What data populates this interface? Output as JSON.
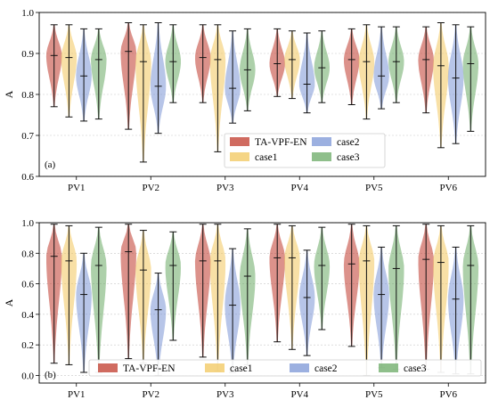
{
  "chart_data": [
    {
      "type": "violin",
      "panel_label": "(a)",
      "ylabel": "A",
      "ylim": [
        0.6,
        1.0
      ],
      "yticks": [
        0.6,
        0.7,
        0.8,
        0.9,
        1.0
      ],
      "ytick_labels": [
        "0.6",
        "0.7",
        "0.8",
        "0.9",
        "1.0"
      ],
      "grid": "horizontal dashed",
      "legend_position": "lower-center",
      "categories": [
        "PV1",
        "PV2",
        "PV3",
        "PV4",
        "PV5",
        "PV6"
      ],
      "series": [
        {
          "name": "TA-VPF-EN",
          "color": "#c0392b",
          "min": [
            0.77,
            0.715,
            0.78,
            0.795,
            0.775,
            0.755
          ],
          "max": [
            0.97,
            0.975,
            0.97,
            0.96,
            0.96,
            0.965
          ],
          "median": [
            0.895,
            0.905,
            0.89,
            0.875,
            0.885,
            0.885
          ]
        },
        {
          "name": "case1",
          "color": "#f2c75c",
          "min": [
            0.745,
            0.635,
            0.66,
            0.79,
            0.74,
            0.67
          ],
          "max": [
            0.97,
            0.97,
            0.97,
            0.955,
            0.97,
            0.975
          ],
          "median": [
            0.89,
            0.88,
            0.885,
            0.885,
            0.88,
            0.87
          ]
        },
        {
          "name": "case2",
          "color": "#7b96d6",
          "min": [
            0.735,
            0.705,
            0.73,
            0.755,
            0.765,
            0.68
          ],
          "max": [
            0.96,
            0.975,
            0.955,
            0.95,
            0.965,
            0.97
          ],
          "median": [
            0.845,
            0.82,
            0.815,
            0.825,
            0.845,
            0.84
          ]
        },
        {
          "name": "case3",
          "color": "#6aaa64",
          "min": [
            0.74,
            0.78,
            0.76,
            0.78,
            0.78,
            0.71
          ],
          "max": [
            0.96,
            0.97,
            0.96,
            0.955,
            0.965,
            0.965
          ],
          "median": [
            0.885,
            0.88,
            0.86,
            0.865,
            0.88,
            0.875
          ]
        }
      ]
    },
    {
      "type": "violin",
      "panel_label": "(b)",
      "ylabel": "A",
      "ylim": [
        -0.05,
        1.0
      ],
      "yticks": [
        0.0,
        0.2,
        0.4,
        0.6,
        0.8,
        1.0
      ],
      "ytick_labels": [
        "0.0",
        "0.2",
        "0.4",
        "0.6",
        "0.8",
        "1.0"
      ],
      "grid": "horizontal dashed",
      "legend_position": "bottom",
      "categories": [
        "PV1",
        "PV2",
        "PV3",
        "PV4",
        "PV5",
        "PV6"
      ],
      "series": [
        {
          "name": "TA-VPF-EN",
          "color": "#c0392b",
          "min": [
            0.08,
            0.11,
            0.12,
            0.22,
            0.19,
            0.04
          ],
          "max": [
            0.99,
            0.99,
            0.99,
            0.99,
            0.99,
            0.99
          ],
          "median": [
            0.78,
            0.81,
            0.75,
            0.77,
            0.73,
            0.76
          ]
        },
        {
          "name": "case1",
          "color": "#f2c75c",
          "min": [
            0.07,
            0.08,
            0.03,
            0.17,
            0.0,
            0.02
          ],
          "max": [
            0.98,
            0.95,
            0.99,
            0.98,
            0.98,
            0.98
          ],
          "median": [
            0.75,
            0.69,
            0.75,
            0.77,
            0.75,
            0.74
          ]
        },
        {
          "name": "case2",
          "color": "#7b96d6",
          "min": [
            0.02,
            0.0,
            0.02,
            0.13,
            0.05,
            0.01
          ],
          "max": [
            0.8,
            0.67,
            0.83,
            0.82,
            0.84,
            0.84
          ],
          "median": [
            0.53,
            0.43,
            0.46,
            0.51,
            0.53,
            0.5
          ]
        },
        {
          "name": "case3",
          "color": "#6aaa64",
          "min": [
            0.02,
            0.23,
            0.07,
            0.3,
            0.04,
            0.01
          ],
          "max": [
            0.97,
            0.94,
            0.96,
            0.97,
            0.98,
            0.98
          ],
          "median": [
            0.72,
            0.72,
            0.65,
            0.72,
            0.7,
            0.72
          ]
        }
      ]
    }
  ]
}
